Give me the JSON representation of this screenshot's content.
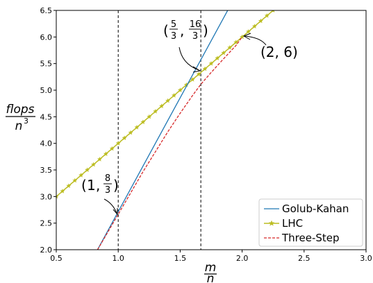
{
  "chart_data": {
    "type": "line",
    "title": "",
    "xlabel": {
      "numerator": "m",
      "denominator": "n"
    },
    "ylabel": {
      "numerator": "flops",
      "denominator": "n",
      "exponent": "3"
    },
    "xlim": [
      0.5,
      3.0
    ],
    "ylim": [
      2.0,
      6.5
    ],
    "xticks": [
      0.5,
      1.0,
      1.5,
      2.0,
      2.5,
      3.0
    ],
    "xtick_labels": [
      "0.5",
      "1.0",
      "1.5",
      "2.0",
      "2.5",
      "3.0"
    ],
    "yticks": [
      2.0,
      2.5,
      3.0,
      3.5,
      4.0,
      4.5,
      5.0,
      5.5,
      6.0,
      6.5
    ],
    "ytick_labels": [
      "2.0",
      "2.5",
      "3.0",
      "3.5",
      "4.0",
      "4.5",
      "5.0",
      "5.5",
      "6.0",
      "6.5"
    ],
    "grid": false,
    "legend": "lower-right",
    "series": [
      {
        "name": "Golub-Kahan",
        "color": "#1f77b4",
        "style": "solid",
        "marker": "none",
        "x": [
          0.833,
          2.0
        ],
        "y": [
          2.0,
          7.0
        ]
      },
      {
        "name": "LHC",
        "color": "#bcbd22",
        "style": "solid",
        "marker": "star",
        "x_range": [
          0.5,
          2.25
        ],
        "step": 0.05,
        "slope": 2,
        "intercept": 2
      },
      {
        "name": "Three-Step",
        "color": "#d62728",
        "style": "dashed",
        "marker": "none",
        "x": [
          0.833,
          1.0,
          1.2,
          1.4,
          1.5,
          1.6,
          1.6667,
          1.75,
          1.85,
          1.95,
          2.0
        ],
        "y": [
          2.0,
          2.6667,
          3.467,
          4.216,
          4.567,
          4.9,
          5.111,
          5.333,
          5.59,
          5.84,
          6.0
        ]
      }
    ],
    "vlines": [
      {
        "x": 1.0,
        "style": "dashed"
      },
      {
        "x": 1.6667,
        "style": "dashed"
      }
    ],
    "annotations": [
      {
        "label": "(1, 8/3)",
        "point": [
          1.0,
          2.6667
        ],
        "parts": {
          "open": "(",
          "a": "1",
          "sep": ",",
          "num": "8",
          "den": "3",
          "close": ")"
        }
      },
      {
        "label": "(5/3, 16/3)",
        "point": [
          1.6667,
          5.3333
        ],
        "parts": {
          "open": "(",
          "anum": "5",
          "aden": "3",
          "sep": ",",
          "num": "16",
          "den": "3",
          "close": ")"
        }
      },
      {
        "label": "(2, 6)",
        "point": [
          2.0,
          6.0
        ],
        "text": "(2, 6)"
      }
    ]
  }
}
